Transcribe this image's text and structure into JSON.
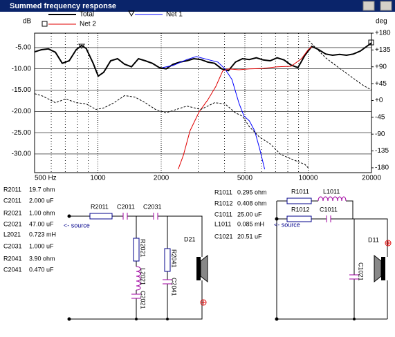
{
  "window": {
    "title": "Summed frequency response"
  },
  "chart_data": {
    "type": "line",
    "xscale": "log",
    "grid": true,
    "y_label": "dB",
    "y2_label": "deg",
    "xlim": [
      500,
      20000
    ],
    "xticks": [
      {
        "value": 500,
        "label": "500 Hz"
      },
      1000,
      2000,
      5000,
      10000,
      20000
    ],
    "xminor": [
      600,
      700,
      800,
      900,
      3000,
      4000,
      6000,
      7000,
      8000,
      9000
    ],
    "ylim": [
      -34.4,
      -1.6
    ],
    "yticks": [
      {
        "value": -5,
        "label": "-5.00"
      },
      {
        "value": -10,
        "label": "-10.00"
      },
      {
        "value": -15,
        "label": "-15.00"
      },
      {
        "value": -20,
        "label": "-20.00"
      },
      {
        "value": -25,
        "label": "-25.00"
      },
      {
        "value": -30,
        "label": "-30.00"
      }
    ],
    "y2lim": [
      -193,
      180
    ],
    "y2ticks": [
      {
        "value": 180,
        "label": "+180"
      },
      {
        "value": 135,
        "label": "+135"
      },
      {
        "value": 90,
        "label": "+90"
      },
      {
        "value": 45,
        "label": "+45"
      },
      {
        "value": 0,
        "label": "+0"
      },
      -45,
      -90,
      -135,
      -180
    ],
    "series": [
      {
        "name": "Total",
        "color": "#000000",
        "width": 2,
        "x": [
          500,
          539,
          582,
          628,
          677,
          730,
          788,
          837,
          880,
          950,
          1004,
          1066,
          1150,
          1240,
          1340,
          1445,
          1560,
          1680,
          1815,
          1960,
          2110,
          2280,
          2460,
          2650,
          2860,
          3090,
          3330,
          3590,
          3880,
          4180,
          4510,
          4870,
          5250,
          5670,
          6110,
          6600,
          7120,
          7680,
          8290,
          8940,
          9650,
          10400,
          11230,
          12110,
          13070,
          14100,
          15210,
          16410,
          17710,
          20000
        ],
        "values": [
          -6.0,
          -5.5,
          -5.3,
          -6.1,
          -8.7,
          -8.1,
          -5.5,
          -4.5,
          -5.2,
          -8.7,
          -11.7,
          -10.8,
          -8.1,
          -7.6,
          -8.9,
          -9.5,
          -7.6,
          -8.1,
          -8.7,
          -9.7,
          -10.0,
          -8.9,
          -8.4,
          -8.1,
          -7.6,
          -7.8,
          -8.4,
          -8.7,
          -10.0,
          -10.4,
          -8.4,
          -7.6,
          -7.8,
          -7.4,
          -7.9,
          -8.1,
          -7.4,
          -7.9,
          -9.1,
          -9.7,
          -6.8,
          -4.7,
          -5.5,
          -6.5,
          -6.8,
          -6.6,
          -6.8,
          -6.5,
          -5.8,
          -3.9
        ]
      },
      {
        "name": "Net 1",
        "color": "#0000ff",
        "width": 1,
        "x": [
          2030,
          2280,
          2650,
          2940,
          3330,
          3720,
          4020,
          4340,
          4690,
          4950,
          5250,
          5570,
          5870,
          6210
        ],
        "values": [
          -9.7,
          -9.2,
          -7.8,
          -7.1,
          -7.8,
          -8.4,
          -10.0,
          -12.5,
          -18.1,
          -21.1,
          -22.2,
          -24.6,
          -28.7,
          -33.6
        ]
      },
      {
        "name": "Net 2",
        "color": "#e00000",
        "width": 1,
        "x": [
          2410,
          2550,
          2740,
          3030,
          3330,
          3640,
          3920,
          4180,
          4690,
          5250,
          6110,
          7120,
          8290,
          9290,
          10000,
          10400
        ],
        "values": [
          -33.6,
          -30.3,
          -24.6,
          -20.1,
          -17.3,
          -14.1,
          -10.5,
          -10.0,
          -10.2,
          -10.0,
          -9.9,
          -9.5,
          -9.4,
          -7.6,
          -5.5,
          -4.8
        ]
      },
      {
        "color": "#000000",
        "width": 1,
        "dash": true,
        "axis": "y2",
        "x": [
          500,
          539,
          582,
          628,
          703,
          788,
          880,
          980,
          1066,
          1195,
          1340,
          1500,
          1680,
          1880,
          2110,
          2360,
          2650,
          3090,
          3590,
          4020,
          4510,
          4870,
          5250,
          5870,
          6600,
          7390,
          8290,
          9650,
          10000,
          null,
          10050,
          10810,
          12110,
          14100,
          16410,
          18300,
          20000
        ],
        "values": [
          18,
          13,
          4,
          -6,
          4,
          -6,
          -9,
          -24,
          -20,
          -6,
          13,
          9,
          -6,
          -24,
          -33,
          -24,
          -15,
          -24,
          -6,
          -9,
          -33,
          -42,
          -70,
          -98,
          -116,
          -144,
          -156,
          -171,
          -180,
          null,
          160,
          142,
          114,
          86,
          59,
          40,
          28
        ]
      }
    ]
  },
  "parts_left": [
    [
      "R2011",
      "19.7 ohm"
    ],
    [
      "C2011",
      "2.000 uF"
    ],
    [
      "R2021",
      "1.00 ohm"
    ],
    [
      "C2021",
      "47.00 uF"
    ],
    [
      "L2021",
      "0.723 mH"
    ],
    [
      "C2031",
      "1.000 uF"
    ],
    [
      "R2041",
      "3.90 ohm"
    ],
    [
      "C2041",
      "0.470 uF"
    ]
  ],
  "parts_right": [
    [
      "R1011",
      "0.295 ohm"
    ],
    [
      "R1012",
      "0.408 ohm"
    ],
    [
      "C1011",
      "25.00 uF"
    ],
    [
      "L1011",
      "0.085 mH"
    ],
    [
      "C1021",
      "20.51 uF"
    ]
  ],
  "schematic_left": {
    "labels": [
      "R2011",
      "C2011",
      "C2031",
      "R2021",
      "L2021",
      "C2021",
      "R2041",
      "C2041",
      "D21"
    ],
    "source": "<- source"
  },
  "schematic_right": {
    "labels": [
      "R1011",
      "L1011",
      "R1012",
      "C1011",
      "C1021",
      "D11"
    ],
    "source": "<- source"
  }
}
